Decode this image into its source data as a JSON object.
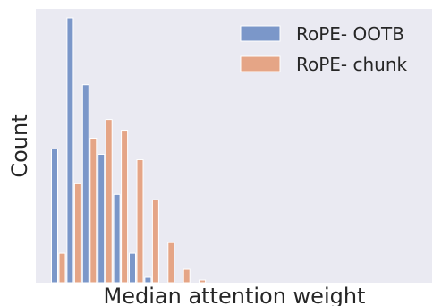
{
  "chart_data": {
    "type": "bar",
    "xlabel": "Median attention weight",
    "ylabel": "Count",
    "ylim": [
      0,
      100
    ],
    "grid": false,
    "legend_position": "top-right",
    "background_color": "#eaeaf2",
    "series": [
      {
        "name": "RoPE- OOTB",
        "color": "#7b97c9",
        "values": [
          50,
          99,
          74,
          48,
          33,
          11,
          2,
          0,
          0,
          0,
          0,
          0,
          0,
          0,
          0,
          0,
          0,
          0,
          0,
          0,
          0,
          0,
          0,
          0,
          0
        ]
      },
      {
        "name": "RoPE- chunk",
        "color": "#e5a586",
        "values": [
          11,
          37,
          54,
          61,
          57,
          46,
          31,
          15,
          5,
          1,
          0,
          0,
          0,
          0,
          0,
          0,
          0,
          0,
          0,
          0,
          0,
          0,
          0,
          0,
          0
        ]
      }
    ]
  }
}
